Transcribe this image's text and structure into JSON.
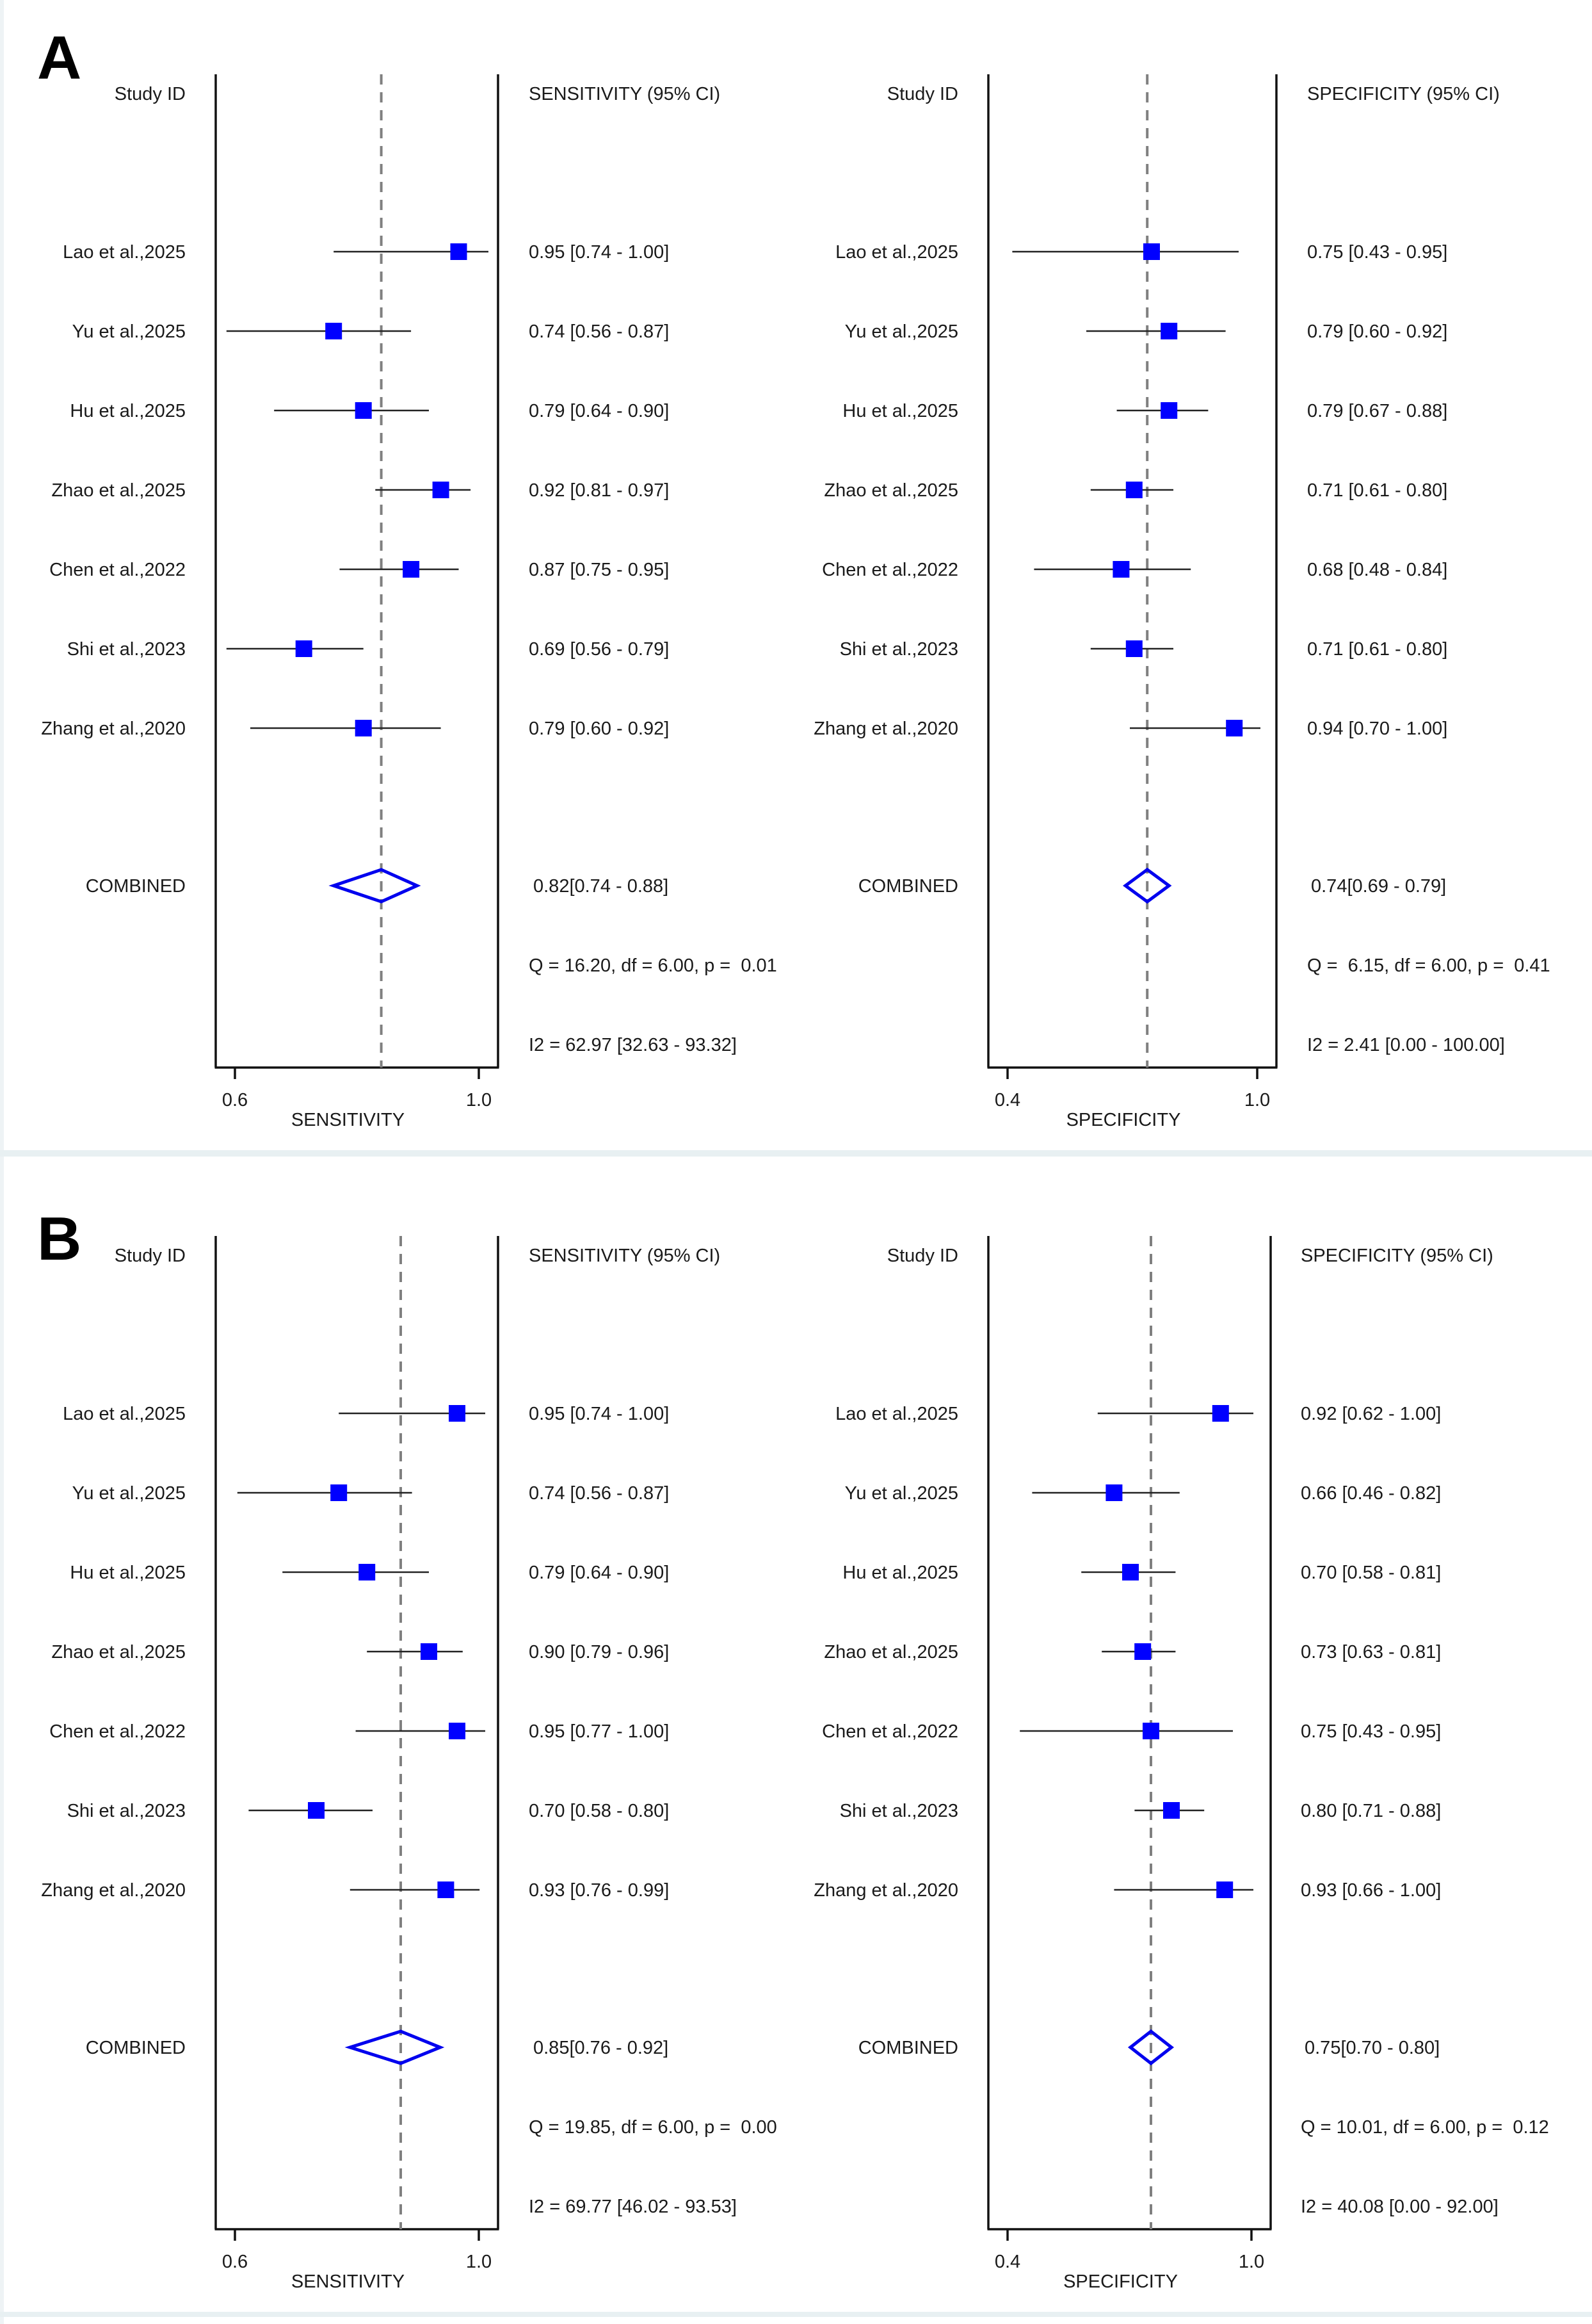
{
  "figure": {
    "panels": [
      {
        "id": "A",
        "letter": "A"
      },
      {
        "id": "B",
        "letter": "B"
      }
    ],
    "colors": {
      "marker": "#0000ff",
      "diamond": "#0000ee",
      "reference_line": "#808080",
      "axis": "#111111",
      "text": "#1a1a1a"
    }
  },
  "chart_data": [
    {
      "type": "forest",
      "panel": "A",
      "measure": "sensitivity",
      "id_header": "Study ID",
      "stat_header": "SENSITIVITY (95% CI)",
      "xlabel": "SENSITIVITY",
      "ticks": [
        "0.6",
        "1.0"
      ],
      "xlim": [
        0.6,
        1.0
      ],
      "studies": [
        {
          "label": "Lao et al.,2025",
          "estimate": 0.95,
          "lo": 0.74,
          "hi": 1.0,
          "text": "0.95 [0.74 - 1.00]"
        },
        {
          "label": "Yu et al.,2025",
          "estimate": 0.74,
          "lo": 0.56,
          "hi": 0.87,
          "text": "0.74 [0.56 - 0.87]"
        },
        {
          "label": "Hu et al.,2025",
          "estimate": 0.79,
          "lo": 0.64,
          "hi": 0.9,
          "text": "0.79 [0.64 - 0.90]"
        },
        {
          "label": "Zhao et al.,2025",
          "estimate": 0.92,
          "lo": 0.81,
          "hi": 0.97,
          "text": "0.92 [0.81 - 0.97]"
        },
        {
          "label": "Chen et al.,2022",
          "estimate": 0.87,
          "lo": 0.75,
          "hi": 0.95,
          "text": "0.87 [0.75 - 0.95]"
        },
        {
          "label": "Shi et al.,2023",
          "estimate": 0.69,
          "lo": 0.56,
          "hi": 0.79,
          "text": "0.69 [0.56 - 0.79]"
        },
        {
          "label": "Zhang et al.,2020",
          "estimate": 0.79,
          "lo": 0.6,
          "hi": 0.92,
          "text": "0.79 [0.60 - 0.92]"
        }
      ],
      "combined": {
        "label": "COMBINED",
        "estimate": 0.82,
        "lo": 0.74,
        "hi": 0.88,
        "text": "0.82[0.74 - 0.88]"
      },
      "heterogeneity": {
        "q_text": "Q = 16.20, df = 6.00, p =  0.01",
        "i2_text": "I2 = 62.97 [32.63 - 93.32]"
      }
    },
    {
      "type": "forest",
      "panel": "A",
      "measure": "specificity",
      "id_header": "Study ID",
      "stat_header": "SPECIFICITY (95% CI)",
      "xlabel": "SPECIFICITY",
      "ticks": [
        "0.4",
        "1.0"
      ],
      "xlim": [
        0.4,
        1.0
      ],
      "studies": [
        {
          "label": "Lao et al.,2025",
          "estimate": 0.75,
          "lo": 0.43,
          "hi": 0.95,
          "text": "0.75 [0.43 - 0.95]"
        },
        {
          "label": "Yu et al.,2025",
          "estimate": 0.79,
          "lo": 0.6,
          "hi": 0.92,
          "text": "0.79 [0.60 - 0.92]"
        },
        {
          "label": "Hu et al.,2025",
          "estimate": 0.79,
          "lo": 0.67,
          "hi": 0.88,
          "text": "0.79 [0.67 - 0.88]"
        },
        {
          "label": "Zhao et al.,2025",
          "estimate": 0.71,
          "lo": 0.61,
          "hi": 0.8,
          "text": "0.71 [0.61 - 0.80]"
        },
        {
          "label": "Chen et al.,2022",
          "estimate": 0.68,
          "lo": 0.48,
          "hi": 0.84,
          "text": "0.68 [0.48 - 0.84]"
        },
        {
          "label": "Shi et al.,2023",
          "estimate": 0.71,
          "lo": 0.61,
          "hi": 0.8,
          "text": "0.71 [0.61 - 0.80]"
        },
        {
          "label": "Zhang et al.,2020",
          "estimate": 0.94,
          "lo": 0.7,
          "hi": 1.0,
          "text": "0.94 [0.70 - 1.00]"
        }
      ],
      "combined": {
        "label": "COMBINED",
        "estimate": 0.74,
        "lo": 0.69,
        "hi": 0.79,
        "text": "0.74[0.69 - 0.79]"
      },
      "heterogeneity": {
        "q_text": "Q =  6.15, df = 6.00, p =  0.41",
        "i2_text": "I2 = 2.41 [0.00 - 100.00]"
      }
    },
    {
      "type": "forest",
      "panel": "B",
      "measure": "sensitivity",
      "id_header": "Study ID",
      "stat_header": "SENSITIVITY (95% CI)",
      "xlabel": "SENSITIVITY",
      "ticks": [
        "0.6",
        "1.0"
      ],
      "xlim": [
        0.6,
        1.0
      ],
      "studies": [
        {
          "label": "Lao et al.,2025",
          "estimate": 0.95,
          "lo": 0.74,
          "hi": 1.0,
          "text": "0.95 [0.74 - 1.00]"
        },
        {
          "label": "Yu et al.,2025",
          "estimate": 0.74,
          "lo": 0.56,
          "hi": 0.87,
          "text": "0.74 [0.56 - 0.87]"
        },
        {
          "label": "Hu et al.,2025",
          "estimate": 0.79,
          "lo": 0.64,
          "hi": 0.9,
          "text": "0.79 [0.64 - 0.90]"
        },
        {
          "label": "Zhao et al.,2025",
          "estimate": 0.9,
          "lo": 0.79,
          "hi": 0.96,
          "text": "0.90 [0.79 - 0.96]"
        },
        {
          "label": "Chen et al.,2022",
          "estimate": 0.95,
          "lo": 0.77,
          "hi": 1.0,
          "text": "0.95 [0.77 - 1.00]"
        },
        {
          "label": "Shi et al.,2023",
          "estimate": 0.7,
          "lo": 0.58,
          "hi": 0.8,
          "text": "0.70 [0.58 - 0.80]"
        },
        {
          "label": "Zhang et al.,2020",
          "estimate": 0.93,
          "lo": 0.76,
          "hi": 0.99,
          "text": "0.93 [0.76 - 0.99]"
        }
      ],
      "combined": {
        "label": "COMBINED",
        "estimate": 0.85,
        "lo": 0.76,
        "hi": 0.92,
        "text": "0.85[0.76 - 0.92]"
      },
      "heterogeneity": {
        "q_text": "Q = 19.85, df = 6.00, p =  0.00",
        "i2_text": "I2 = 69.77 [46.02 - 93.53]"
      }
    },
    {
      "type": "forest",
      "panel": "B",
      "measure": "specificity",
      "id_header": "Study ID",
      "stat_header": "SPECIFICITY (95% CI)",
      "xlabel": "SPECIFICITY",
      "ticks": [
        "0.4",
        "1.0"
      ],
      "xlim": [
        0.4,
        1.0
      ],
      "studies": [
        {
          "label": "Lao et al.,2025",
          "estimate": 0.92,
          "lo": 0.62,
          "hi": 1.0,
          "text": "0.92 [0.62 - 1.00]"
        },
        {
          "label": "Yu et al.,2025",
          "estimate": 0.66,
          "lo": 0.46,
          "hi": 0.82,
          "text": "0.66 [0.46 - 0.82]"
        },
        {
          "label": "Hu et al.,2025",
          "estimate": 0.7,
          "lo": 0.58,
          "hi": 0.81,
          "text": "0.70 [0.58 - 0.81]"
        },
        {
          "label": "Zhao et al.,2025",
          "estimate": 0.73,
          "lo": 0.63,
          "hi": 0.81,
          "text": "0.73 [0.63 - 0.81]"
        },
        {
          "label": "Chen et al.,2022",
          "estimate": 0.75,
          "lo": 0.43,
          "hi": 0.95,
          "text": "0.75 [0.43 - 0.95]"
        },
        {
          "label": "Shi et al.,2023",
          "estimate": 0.8,
          "lo": 0.71,
          "hi": 0.88,
          "text": "0.80 [0.71 - 0.88]"
        },
        {
          "label": "Zhang et al.,2020",
          "estimate": 0.93,
          "lo": 0.66,
          "hi": 1.0,
          "text": "0.93 [0.66 - 1.00]"
        }
      ],
      "combined": {
        "label": "COMBINED",
        "estimate": 0.75,
        "lo": 0.7,
        "hi": 0.8,
        "text": "0.75[0.70 - 0.80]"
      },
      "heterogeneity": {
        "q_text": "Q = 10.01, df = 6.00, p =  0.12",
        "i2_text": "I2 = 40.08 [0.00 - 92.00]"
      }
    }
  ]
}
